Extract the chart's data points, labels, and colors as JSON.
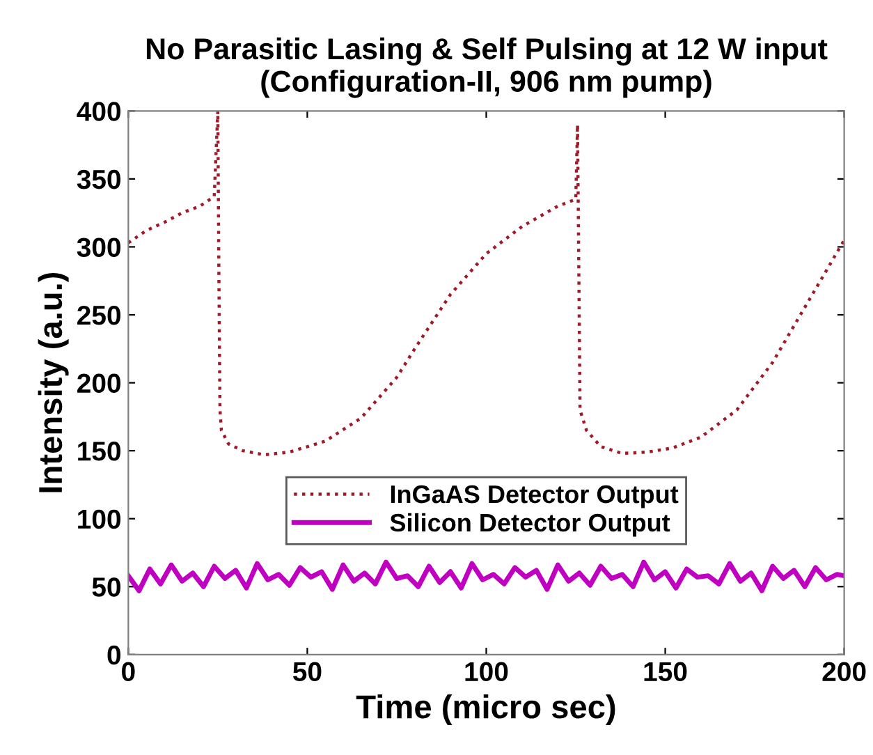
{
  "chart_data": {
    "type": "line",
    "title": "No Parasitic Lasing & Self Pulsing at 12 W input\n(Configuration-II, 906 nm pump)",
    "xlabel": "Time (micro sec)",
    "ylabel": "Intensity (a.u.)",
    "xlim": [
      0,
      200
    ],
    "ylim": [
      0,
      400
    ],
    "xticks": [
      0,
      50,
      100,
      150,
      200
    ],
    "yticks": [
      0,
      50,
      100,
      150,
      200,
      250,
      300,
      350,
      400
    ],
    "grid": false,
    "legend": "bottom",
    "marker": "none",
    "series": [
      {
        "name": "InGaAS Detector Output",
        "color": "#a01a2a",
        "line_style": "dotted",
        "x": [
          0,
          5,
          10,
          15,
          20,
          24,
          25,
          25.3,
          25.6,
          26,
          28,
          32,
          38,
          45,
          55,
          65,
          75,
          80,
          90,
          100,
          110,
          120,
          125,
          125.5,
          125.8,
          126.2,
          128,
          132,
          138,
          145,
          152,
          160,
          170,
          180,
          190,
          200
        ],
        "values": [
          303,
          312,
          318,
          325,
          330,
          337,
          400,
          280,
          180,
          165,
          155,
          150,
          147,
          149,
          157,
          174,
          204,
          225,
          265,
          295,
          315,
          330,
          335,
          390,
          300,
          180,
          165,
          153,
          148,
          149,
          152,
          160,
          180,
          215,
          260,
          305
        ]
      },
      {
        "name": "Silicon Detector Output",
        "color": "#c000c0",
        "line_style": "solid",
        "x": [
          0,
          3,
          6,
          9,
          12,
          15,
          18,
          21,
          24,
          27,
          30,
          33,
          36,
          39,
          42,
          45,
          48,
          51,
          54,
          57,
          60,
          63,
          66,
          69,
          72,
          75,
          78,
          81,
          84,
          87,
          90,
          93,
          96,
          99,
          102,
          105,
          108,
          111,
          114,
          117,
          120,
          123,
          126,
          129,
          132,
          135,
          138,
          141,
          144,
          147,
          150,
          153,
          156,
          159,
          162,
          165,
          168,
          171,
          174,
          177,
          180,
          183,
          186,
          189,
          192,
          195,
          198,
          200
        ],
        "values": [
          58,
          47,
          63,
          52,
          66,
          54,
          60,
          50,
          65,
          56,
          62,
          49,
          67,
          55,
          59,
          51,
          64,
          57,
          61,
          48,
          66,
          54,
          60,
          52,
          68,
          56,
          58,
          50,
          65,
          53,
          61,
          49,
          67,
          55,
          59,
          52,
          64,
          57,
          62,
          48,
          66,
          54,
          60,
          51,
          65,
          56,
          59,
          50,
          68,
          55,
          61,
          49,
          63,
          57,
          58,
          52,
          67,
          54,
          60,
          47,
          65,
          56,
          62,
          50,
          64,
          55,
          59,
          58
        ]
      }
    ]
  }
}
